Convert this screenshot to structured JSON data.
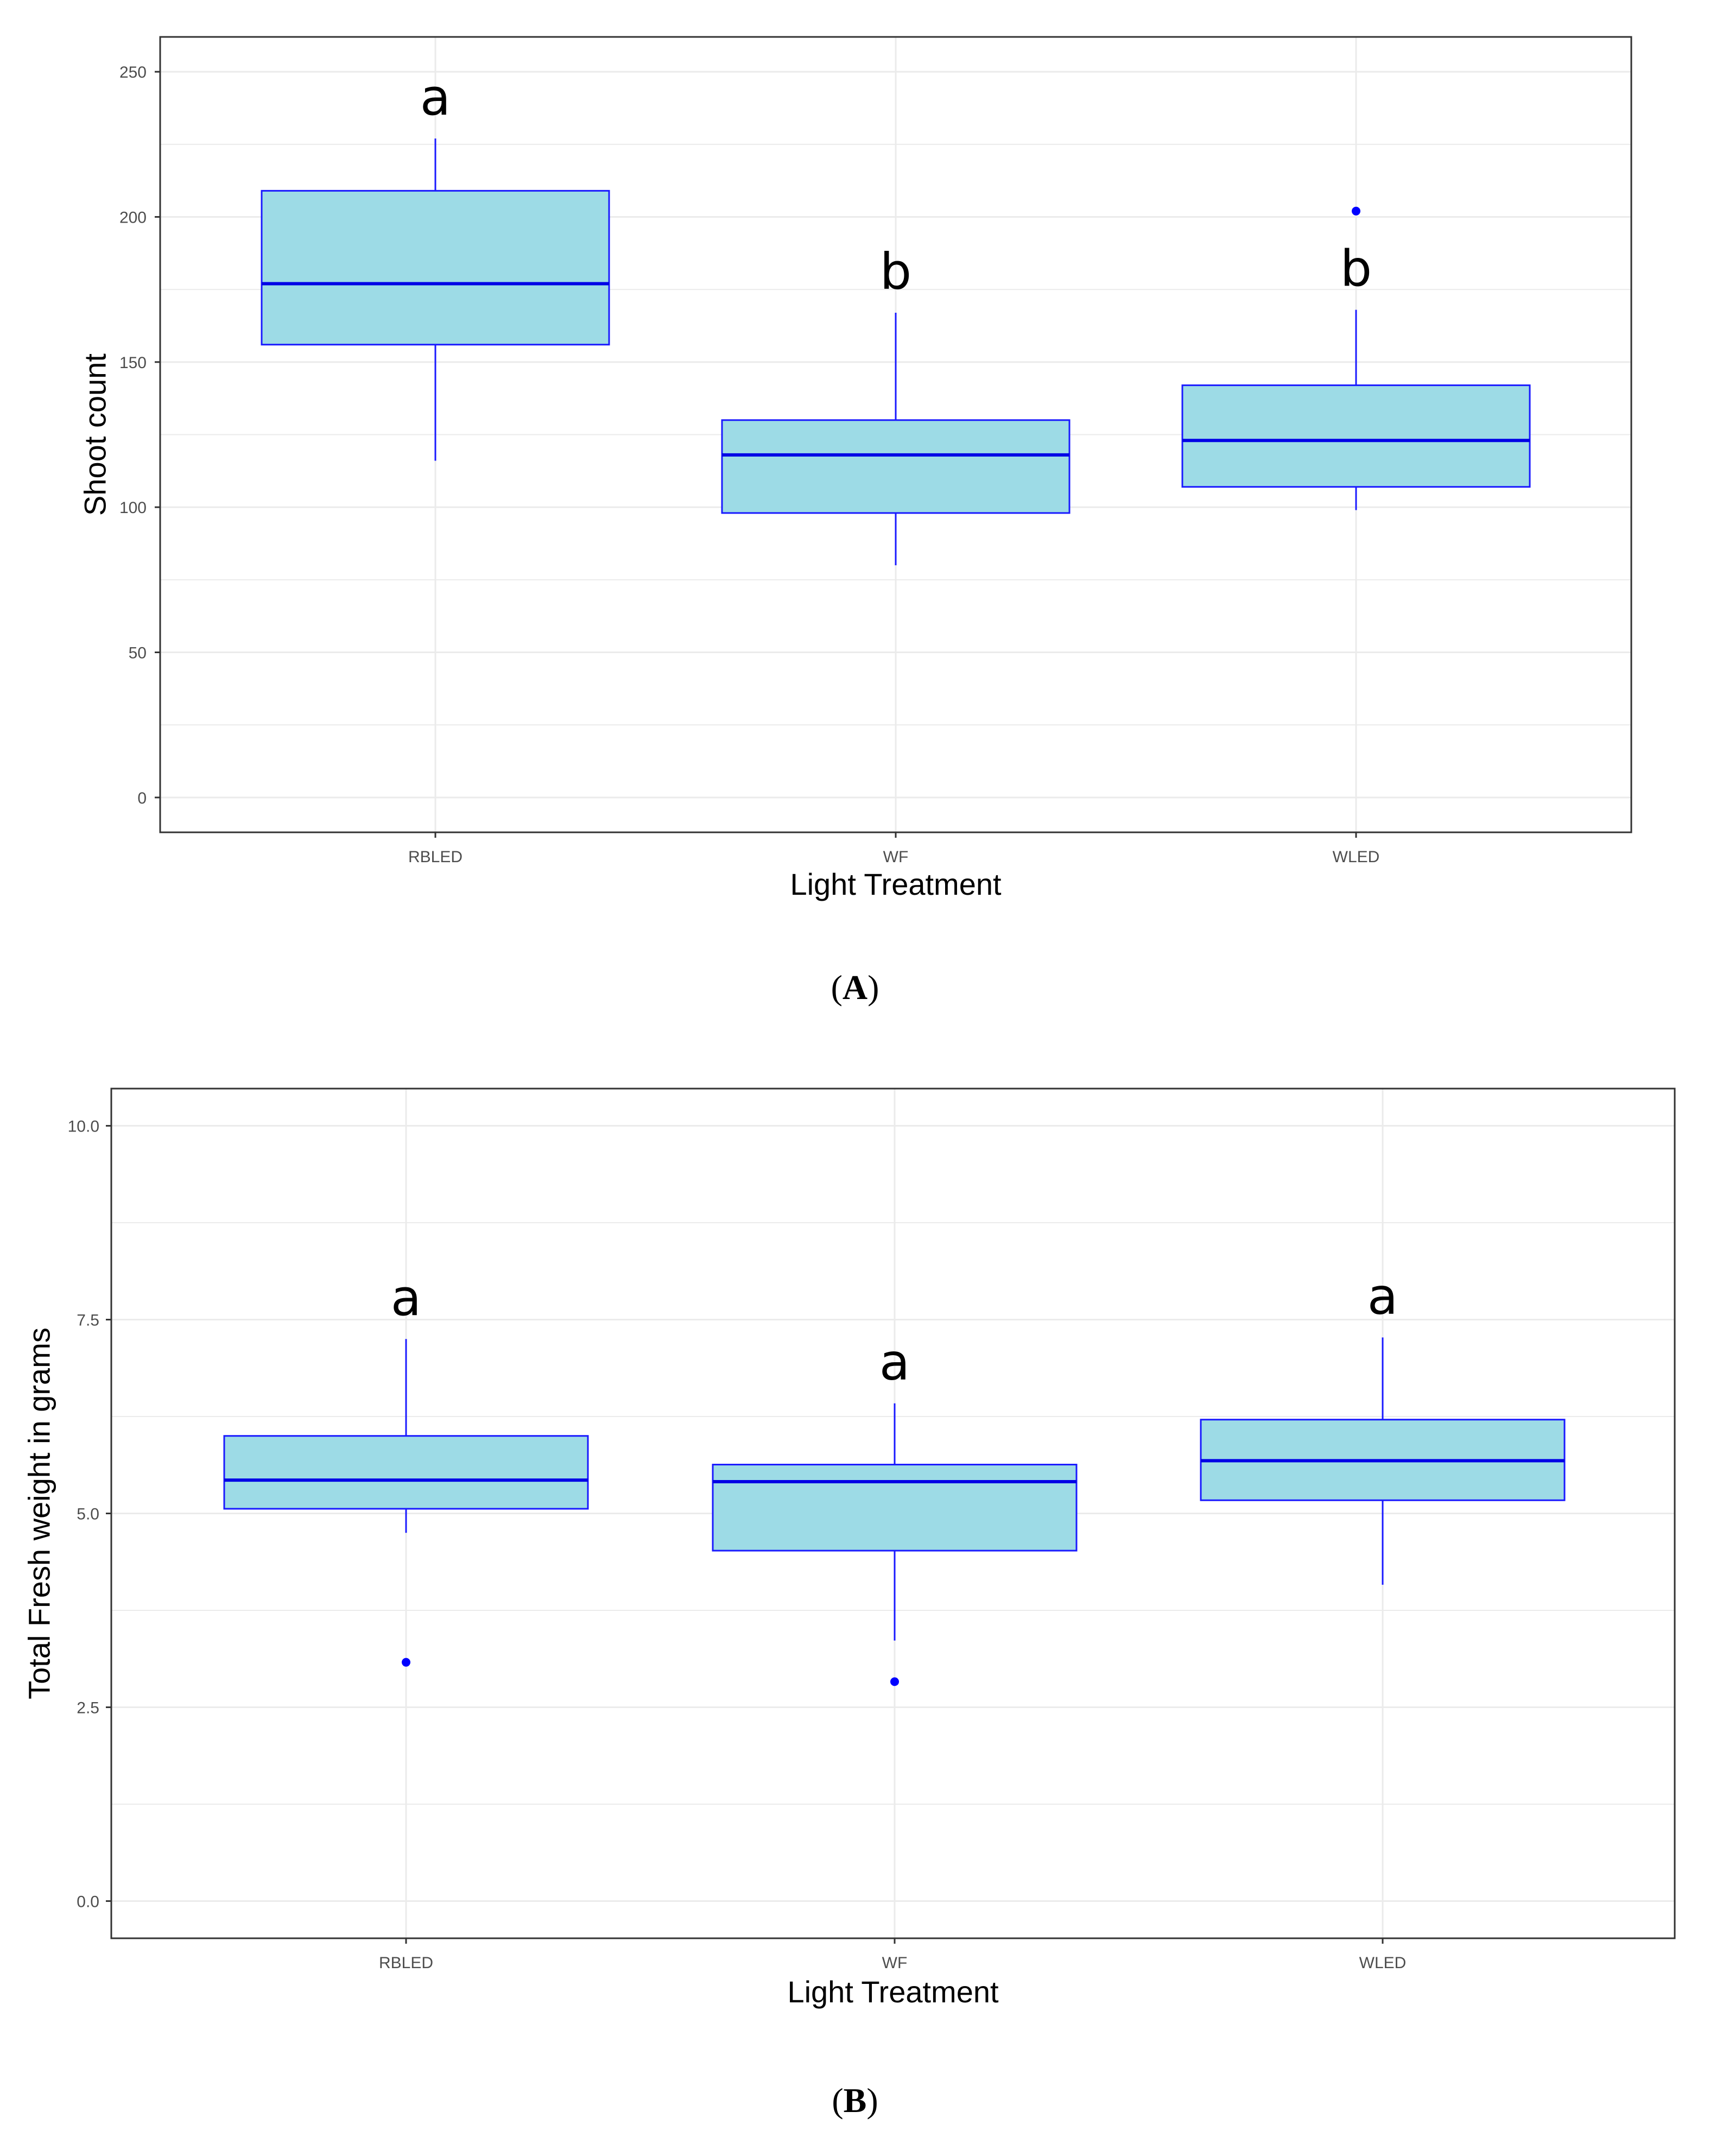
{
  "colors": {
    "box_fill": "#9ddbe6",
    "box_stroke": "#1a1aff",
    "median": "#0000e6",
    "outlier": "#0000ff",
    "grid": "#ebebeb",
    "panel_border": "#333333"
  },
  "chart_data": [
    {
      "type": "boxplot",
      "caption_letter": "A",
      "caption_open": "(",
      "caption_close": ")",
      "xlabel": "Light Treatment",
      "ylabel": "Shoot count",
      "ylim": [
        -12,
        262
      ],
      "yticks": [
        0,
        50,
        100,
        150,
        200,
        250
      ],
      "ytick_labels": [
        "0",
        "50",
        "100",
        "150",
        "200",
        "250"
      ],
      "categories": [
        "RBLED",
        "WF",
        "WLED"
      ],
      "boxes": [
        {
          "min": 116,
          "q1": 156,
          "median": 177,
          "q3": 209,
          "max": 227,
          "outliers": [],
          "letter": "a"
        },
        {
          "min": 80,
          "q1": 98,
          "median": 118,
          "q3": 130,
          "max": 167,
          "outliers": [],
          "letter": "b"
        },
        {
          "min": 99,
          "q1": 107,
          "median": 123,
          "q3": 142,
          "max": 168,
          "outliers": [
            202
          ],
          "letter": "b"
        }
      ]
    },
    {
      "type": "boxplot",
      "caption_letter": "B",
      "caption_open": "(",
      "caption_close": ")",
      "xlabel": "Light Treatment",
      "ylabel": "Total Fresh weight in grams",
      "ylim": [
        -0.48,
        10.48
      ],
      "yticks": [
        0.0,
        2.5,
        5.0,
        7.5,
        10.0
      ],
      "ytick_labels": [
        "0.0",
        "2.5",
        "5.0",
        "7.5",
        "10.0"
      ],
      "categories": [
        "RBLED",
        "WF",
        "WLED"
      ],
      "boxes": [
        {
          "min": 4.75,
          "q1": 5.06,
          "median": 5.43,
          "q3": 6.0,
          "max": 7.25,
          "outliers": [
            3.08
          ],
          "letter": "a"
        },
        {
          "min": 3.36,
          "q1": 4.52,
          "median": 5.41,
          "q3": 5.63,
          "max": 6.42,
          "outliers": [
            2.83
          ],
          "letter": "a"
        },
        {
          "min": 4.08,
          "q1": 5.17,
          "median": 5.68,
          "q3": 6.21,
          "max": 7.27,
          "outliers": [],
          "letter": "a"
        }
      ]
    }
  ]
}
